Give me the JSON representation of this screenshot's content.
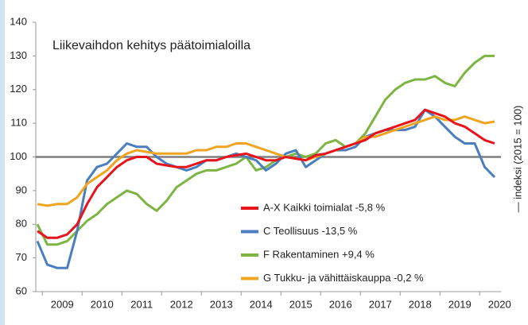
{
  "chart_data": {
    "type": "line",
    "title": "Liikevaihdon kehitys päätoimialoilla",
    "y_label": "— indeksi (2015 = 100)",
    "categories": [
      null,
      null,
      "2009",
      null,
      null,
      null,
      "2010",
      null,
      null,
      null,
      "2011",
      null,
      null,
      null,
      "2012",
      null,
      null,
      null,
      "2013",
      null,
      null,
      null,
      "2014",
      null,
      null,
      null,
      "2015",
      null,
      null,
      null,
      "2016",
      null,
      null,
      null,
      "2017",
      null,
      null,
      null,
      "2018",
      null,
      null,
      null,
      "2019",
      null,
      null,
      null,
      "2020"
    ],
    "ylim": [
      60,
      140
    ],
    "yticks": [
      60,
      70,
      80,
      90,
      100,
      110,
      120,
      130,
      140
    ],
    "reference_line": {
      "value": 100,
      "color": "#7f7f7f"
    },
    "series": [
      {
        "name": "A-X Kaikki toimialat -5,8 %",
        "color": "#e8141c",
        "values": [
          78,
          76,
          76,
          77,
          80,
          86,
          91,
          94,
          97,
          99,
          100,
          100,
          98,
          97.5,
          97,
          97,
          98,
          99,
          99,
          100,
          100.5,
          101,
          100,
          99,
          99,
          100,
          99.5,
          99,
          100.5,
          101,
          102,
          103,
          104,
          105,
          107,
          108,
          109,
          110,
          111,
          114,
          113,
          112,
          110,
          109,
          107,
          105,
          104
        ]
      },
      {
        "name": "C Teollisuus -13,5 %",
        "color": "#4a7ebf",
        "values": [
          75,
          68,
          67,
          67,
          78,
          93,
          97,
          98,
          101,
          104,
          103,
          103,
          100,
          98,
          97,
          96,
          97,
          99,
          99,
          100,
          101,
          100,
          99,
          96,
          98,
          101,
          102,
          97,
          99,
          101,
          102,
          102,
          103,
          106,
          107,
          108,
          108,
          108,
          109,
          114,
          112,
          109,
          106,
          104,
          104,
          97,
          94
        ]
      },
      {
        "name": "F Rakentaminen +9,4 %",
        "color": "#7db543",
        "values": [
          80,
          74,
          74,
          75,
          78,
          81,
          83,
          86,
          88,
          90,
          89,
          86,
          84,
          87,
          91,
          93,
          95,
          96,
          96,
          97,
          98,
          100,
          96,
          97,
          99,
          100,
          101,
          100,
          101,
          104,
          105,
          103,
          104,
          107,
          112,
          117,
          120,
          122,
          123,
          123,
          124,
          122,
          121,
          125,
          128,
          130,
          130
        ]
      },
      {
        "name": "G Tukku- ja vähittäiskauppa -0,2 %",
        "color": "#f0a420",
        "values": [
          86,
          85.5,
          86,
          86,
          88,
          92,
          94,
          96,
          99,
          101,
          102,
          101.5,
          101,
          101,
          101,
          101,
          102,
          102,
          103,
          103,
          104,
          104,
          103,
          102,
          101,
          100,
          99.5,
          99,
          100,
          101,
          102,
          103,
          104,
          106,
          106,
          107,
          108,
          109,
          110,
          111,
          112,
          111,
          111,
          112,
          111,
          110,
          110.5
        ]
      }
    ]
  }
}
